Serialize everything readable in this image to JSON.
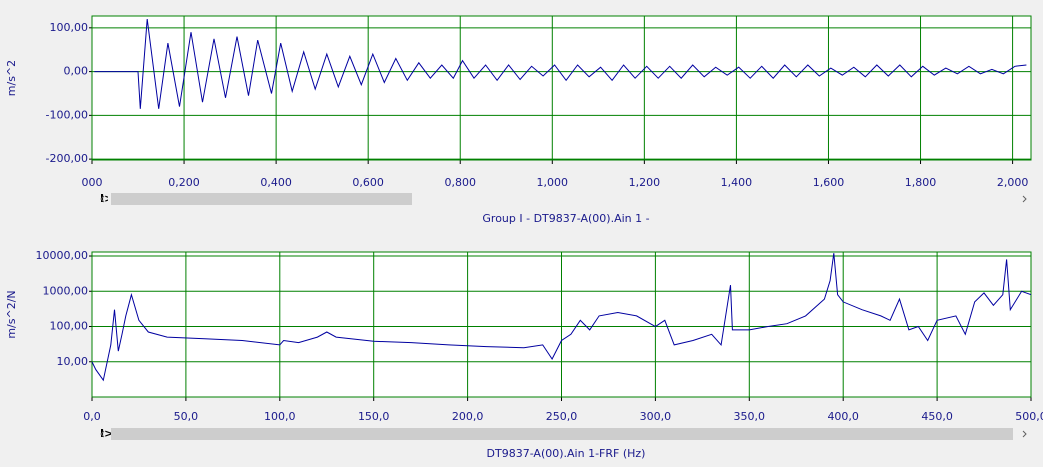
{
  "chart_data": [
    {
      "type": "line",
      "ylabel": "m/s^2",
      "title": "Group I - DT9837-A(00).Ain 1 -",
      "xlim": [
        0,
        2.04
      ],
      "ylim": [
        -202,
        127
      ],
      "grid": true,
      "xticks": [
        {
          "value": 0,
          "label": "000"
        },
        {
          "value": 0.2,
          "label": "0,200"
        },
        {
          "value": 0.4,
          "label": "0,400"
        },
        {
          "value": 0.6,
          "label": "0,600"
        },
        {
          "value": 0.8,
          "label": "0,800"
        },
        {
          "value": 1.0,
          "label": "1,000"
        },
        {
          "value": 1.2,
          "label": "1,200"
        },
        {
          "value": 1.4,
          "label": "1,400"
        },
        {
          "value": 1.6,
          "label": "1,600"
        },
        {
          "value": 1.8,
          "label": "1,800"
        },
        {
          "value": 2.0,
          "label": "2,000"
        }
      ],
      "yticks": [
        {
          "value": 100,
          "label": "100,00"
        },
        {
          "value": 0,
          "label": "0,00"
        },
        {
          "value": -100,
          "label": "-100,00"
        },
        {
          "value": -200,
          "label": "-200,00"
        }
      ],
      "series": [
        {
          "color": "#0000a0",
          "x": [
            0.005,
            0.1,
            0.105,
            0.12,
            0.145,
            0.165,
            0.19,
            0.215,
            0.24,
            0.265,
            0.29,
            0.315,
            0.34,
            0.36,
            0.39,
            0.41,
            0.435,
            0.46,
            0.485,
            0.51,
            0.535,
            0.56,
            0.585,
            0.61,
            0.635,
            0.66,
            0.685,
            0.71,
            0.735,
            0.76,
            0.785,
            0.805,
            0.83,
            0.855,
            0.88,
            0.905,
            0.93,
            0.955,
            0.98,
            1.005,
            1.03,
            1.055,
            1.08,
            1.105,
            1.13,
            1.155,
            1.18,
            1.205,
            1.23,
            1.255,
            1.28,
            1.305,
            1.33,
            1.355,
            1.38,
            1.405,
            1.43,
            1.455,
            1.48,
            1.505,
            1.53,
            1.555,
            1.58,
            1.605,
            1.63,
            1.655,
            1.68,
            1.705,
            1.73,
            1.755,
            1.78,
            1.805,
            1.83,
            1.855,
            1.88,
            1.905,
            1.93,
            1.955,
            1.98,
            2.005,
            2.03
          ],
          "values": [
            0,
            0,
            -85,
            120,
            -85,
            65,
            -80,
            90,
            -70,
            75,
            -60,
            80,
            -55,
            72,
            -50,
            65,
            -45,
            45,
            -40,
            40,
            -35,
            35,
            -30,
            40,
            -25,
            30,
            -20,
            20,
            -15,
            15,
            -15,
            25,
            -15,
            15,
            -20,
            15,
            -18,
            12,
            -10,
            15,
            -20,
            15,
            -12,
            10,
            -20,
            15,
            -15,
            12,
            -15,
            12,
            -15,
            15,
            -12,
            10,
            -8,
            10,
            -15,
            12,
            -15,
            15,
            -12,
            15,
            -10,
            8,
            -8,
            10,
            -12,
            15,
            -10,
            15,
            -12,
            12,
            -8,
            8,
            -5,
            12,
            -5,
            5,
            -5,
            12,
            15
          ]
        }
      ]
    },
    {
      "type": "line",
      "ylabel": "m/s^2/N",
      "title": "DT9837-A(00).Ain 1-FRF (Hz)",
      "yscale": "log",
      "xlim": [
        0,
        500
      ],
      "ylim": [
        1,
        13000
      ],
      "grid": true,
      "xticks": [
        {
          "value": 0,
          "label": "0,0"
        },
        {
          "value": 50,
          "label": "50,0"
        },
        {
          "value": 100,
          "label": "100,0"
        },
        {
          "value": 150,
          "label": "150,0"
        },
        {
          "value": 200,
          "label": "200,0"
        },
        {
          "value": 250,
          "label": "250,0"
        },
        {
          "value": 300,
          "label": "300,0"
        },
        {
          "value": 350,
          "label": "350,0"
        },
        {
          "value": 400,
          "label": "400,0"
        },
        {
          "value": 450,
          "label": "450,0"
        },
        {
          "value": 500,
          "label": "500,0"
        }
      ],
      "yticks": [
        {
          "value": 10000,
          "label": "10000,00"
        },
        {
          "value": 1000,
          "label": "1000,00"
        },
        {
          "value": 100,
          "label": "100,00"
        },
        {
          "value": 10,
          "label": "10,00"
        }
      ],
      "series": [
        {
          "color": "#0000a0",
          "x": [
            0,
            2,
            6,
            10,
            12,
            14,
            16,
            18,
            21,
            25,
            30,
            40,
            60,
            80,
            100,
            102,
            110,
            120,
            125,
            130,
            150,
            170,
            190,
            210,
            230,
            240,
            245,
            250,
            255,
            260,
            265,
            270,
            280,
            290,
            300,
            305,
            310,
            320,
            330,
            335,
            340,
            341,
            350,
            360,
            370,
            380,
            390,
            393,
            395,
            397,
            400,
            410,
            420,
            425,
            430,
            435,
            440,
            445,
            450,
            460,
            465,
            470,
            475,
            480,
            485,
            487,
            489,
            495,
            500
          ],
          "values": [
            10,
            6,
            3,
            30,
            300,
            20,
            60,
            200,
            800,
            150,
            70,
            50,
            45,
            40,
            30,
            40,
            35,
            50,
            70,
            50,
            38,
            35,
            30,
            27,
            25,
            30,
            12,
            40,
            60,
            150,
            80,
            200,
            250,
            200,
            100,
            150,
            30,
            40,
            60,
            30,
            1500,
            80,
            80,
            100,
            120,
            200,
            600,
            2000,
            12000,
            800,
            500,
            300,
            200,
            150,
            600,
            80,
            100,
            40,
            150,
            200,
            60,
            500,
            900,
            400,
            800,
            8000,
            300,
            1000,
            800
          ]
        }
      ]
    }
  ]
}
